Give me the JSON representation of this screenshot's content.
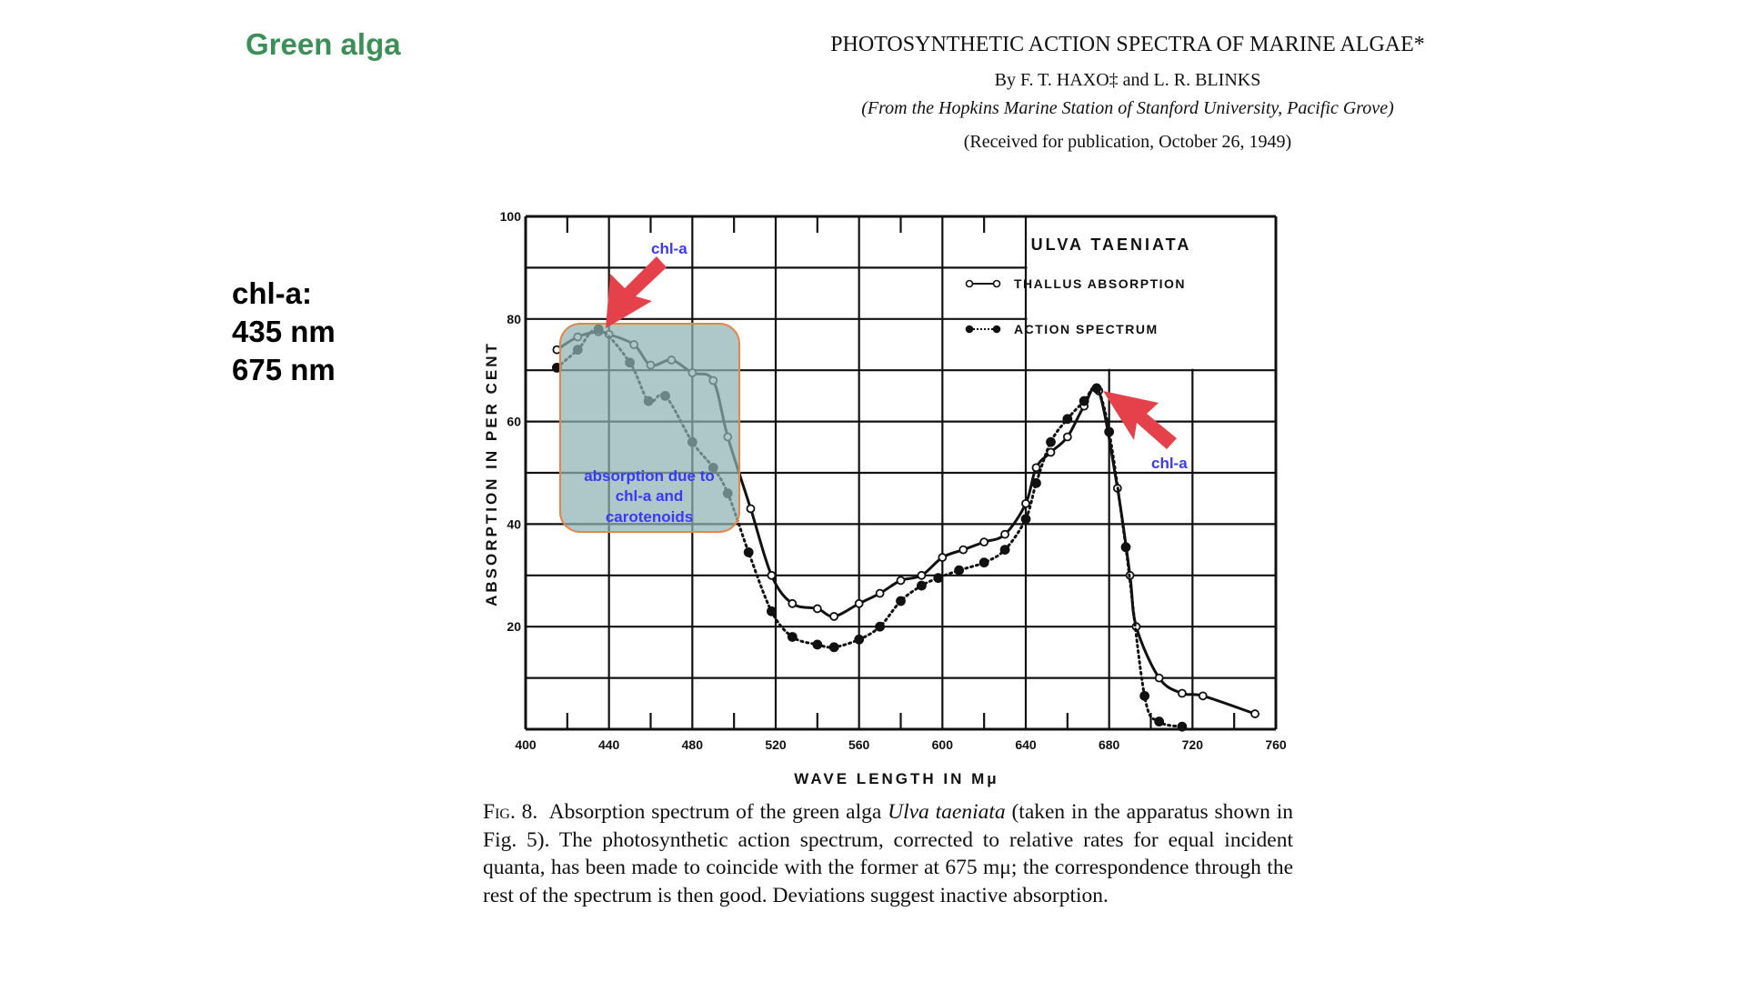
{
  "slide": {
    "title": "Green alga",
    "note_lines": [
      "chl-a:",
      "435 nm",
      "675 nm"
    ]
  },
  "paper": {
    "title": "PHOTOSYNTHETIC ACTION SPECTRA OF MARINE ALGAE*",
    "authors": "By F. T. HAXO‡ and L. R. BLINKS",
    "affiliation": "(From the Hopkins Marine Station of Stanford University, Pacific Grove)",
    "received": "(Received for publication, October 26, 1949)",
    "caption_label": "Fig. 8.",
    "caption_text_1": "Absorption spectrum of the green alga ",
    "caption_species": "Ulva taeniata",
    "caption_text_2": " (taken in the apparatus shown in Fig. 5). The photosynthetic action spectrum, corrected to relative rates for equal incident quanta, has been made to coincide with the former at 675 mμ; the correspondence through the rest of the spectrum is then good. Deviations suggest inactive absorption."
  },
  "annotations": {
    "arrow1_label": "chl-a",
    "arrow2_label": "chl-a",
    "box_lines": [
      "absorption due to",
      "chl-a and",
      "carotenoids"
    ],
    "arrow_color": "#e5414a",
    "label_color": "#3a3af5",
    "box_fill": "#8fb1b4",
    "box_border": "#e8834a"
  },
  "chart_data": {
    "type": "line",
    "title": "ULVA TAENIATA",
    "xlabel": "WAVE LENGTH IN Mμ",
    "ylabel": "ABSORPTION IN PER CENT",
    "xlim": [
      400,
      760
    ],
    "ylim": [
      0,
      100
    ],
    "xticks": [
      400,
      440,
      480,
      520,
      560,
      600,
      640,
      680,
      720,
      760
    ],
    "yticks": [
      20,
      40,
      60,
      80,
      100
    ],
    "grid": true,
    "legend_position": "top-right",
    "series": [
      {
        "name": "THALLUS ABSORPTION",
        "marker": "open-circle",
        "style": "solid",
        "x": [
          415,
          425,
          435,
          440,
          452,
          460,
          470,
          480,
          490,
          497,
          508,
          518,
          528,
          540,
          548,
          560,
          570,
          580,
          590,
          600,
          610,
          620,
          630,
          640,
          645,
          652,
          660,
          668,
          675,
          684,
          690,
          693,
          704,
          715,
          725,
          750
        ],
        "y": [
          74,
          76.5,
          77.5,
          77,
          75,
          71,
          72,
          69.5,
          68,
          57,
          43,
          30,
          24.5,
          23.5,
          22,
          24.5,
          26.5,
          29,
          30,
          33.5,
          35,
          36.5,
          38,
          44,
          51,
          54,
          57,
          63,
          66,
          47,
          30,
          20,
          10,
          7,
          6.5,
          3
        ]
      },
      {
        "name": "ACTION SPECTRUM",
        "marker": "filled-circle",
        "style": "dotted",
        "x": [
          415,
          425,
          435,
          450,
          459,
          467,
          480,
          490,
          497,
          507,
          518,
          528,
          540,
          548,
          560,
          570,
          580,
          590,
          598,
          608,
          620,
          630,
          640,
          645,
          652,
          660,
          668,
          674,
          680,
          688,
          697,
          704,
          715
        ],
        "y": [
          70.5,
          74,
          78,
          71.5,
          64,
          65,
          56,
          51,
          46,
          34.5,
          23,
          18,
          16.5,
          16,
          17.5,
          20,
          25,
          28,
          29.5,
          31,
          32.5,
          35,
          41,
          48,
          56,
          60.5,
          64,
          66.5,
          58,
          35.5,
          6.5,
          1.5,
          0.5
        ]
      }
    ]
  }
}
